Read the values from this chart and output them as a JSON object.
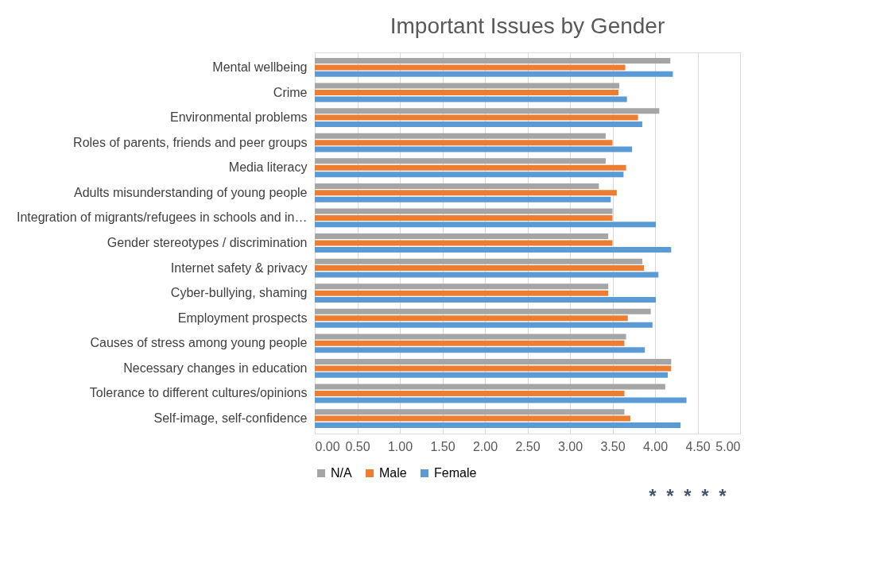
{
  "chart_data": {
    "type": "bar",
    "orientation": "horizontal",
    "title": "Important Issues by Gender",
    "categories": [
      "Mental wellbeing",
      "Crime",
      "Environmental problems",
      "Roles of parents, friends and peer groups",
      "Media literacy",
      "Adults misunderstanding of young people",
      "Integration of migrants/refugees in schools and in…",
      "Gender stereotypes / discrimination",
      "Internet safety & privacy",
      "Cyber-bullying, shaming",
      "Employment prospects",
      "Causes of stress among young people",
      "Necessary changes in education",
      "Tolerance to different cultures/opinions",
      "Self-image, self-confidence"
    ],
    "series": [
      {
        "name": "N/A",
        "color": "#a5a5a5",
        "values": [
          4.18,
          3.58,
          4.05,
          3.42,
          3.42,
          3.34,
          3.5,
          3.45,
          3.85,
          3.45,
          3.95,
          3.66,
          4.19,
          4.12,
          3.64
        ]
      },
      {
        "name": "Male",
        "color": "#ed7d31",
        "values": [
          3.65,
          3.57,
          3.8,
          3.5,
          3.66,
          3.55,
          3.5,
          3.5,
          3.87,
          3.45,
          3.68,
          3.64,
          4.19,
          3.64,
          3.71
        ]
      },
      {
        "name": "Female",
        "color": "#5b9bd5",
        "values": [
          4.21,
          3.67,
          3.85,
          3.73,
          3.63,
          3.48,
          4.01,
          4.19,
          4.04,
          4.01,
          3.97,
          3.88,
          4.15,
          4.37,
          4.3
        ]
      }
    ],
    "xlim": [
      0,
      5
    ],
    "xticks": [
      {
        "value": 0,
        "label": "0.00"
      },
      {
        "value": 0.5,
        "label": "0.50"
      },
      {
        "value": 1,
        "label": "1.00"
      },
      {
        "value": 1.5,
        "label": "1.50"
      },
      {
        "value": 2,
        "label": "2.00"
      },
      {
        "value": 2.5,
        "label": "2.50"
      },
      {
        "value": 3,
        "label": "3.00"
      },
      {
        "value": 3.5,
        "label": "3.50"
      },
      {
        "value": 4,
        "label": "4.00"
      },
      {
        "value": 4.5,
        "label": "4.50"
      },
      {
        "value": 5,
        "label": "5.00"
      }
    ],
    "annotations": [
      "*",
      "*",
      "*",
      "*",
      "*"
    ],
    "grid": "x",
    "legend": "bottom"
  }
}
